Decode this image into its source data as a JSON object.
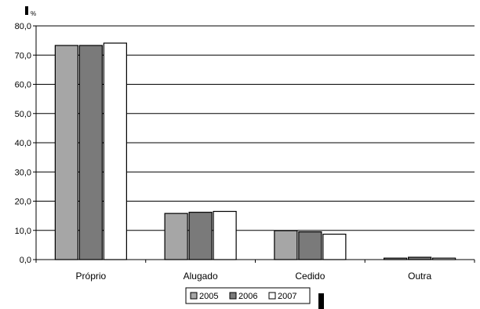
{
  "chart_data": {
    "type": "bar",
    "ylabel": "%",
    "categories": [
      "Próprio",
      "Alugado",
      "Cedido",
      "Outra"
    ],
    "series": [
      {
        "name": "2005",
        "color": "#a6a6a6",
        "values": [
          73.3,
          15.8,
          9.9,
          0.5
        ]
      },
      {
        "name": "2006",
        "color": "#7a7a7a",
        "values": [
          73.3,
          16.2,
          9.5,
          0.8
        ]
      },
      {
        "name": "2007",
        "color": "#ffffff",
        "values": [
          74.1,
          16.5,
          8.7,
          0.5
        ]
      }
    ],
    "ylim": [
      0,
      80
    ],
    "yticks": [
      "0,0",
      "10,0",
      "20,0",
      "30,0",
      "40,0",
      "50,0",
      "60,0",
      "70,0",
      "80,0"
    ],
    "grid": true,
    "legend_position": "bottom-center"
  }
}
